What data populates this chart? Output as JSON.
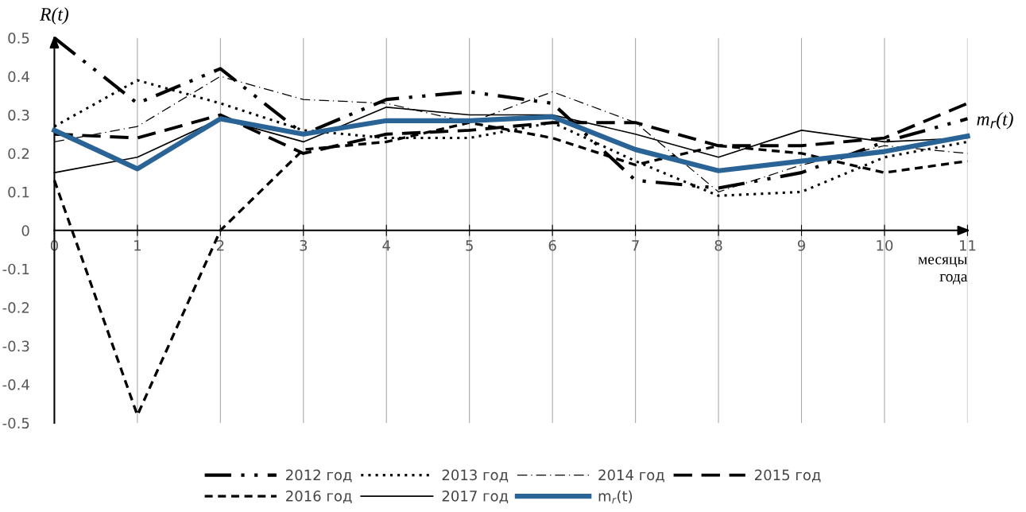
{
  "chart_data": {
    "type": "line",
    "ylabel": "R(t)",
    "xlabel": "месяцы\nгода",
    "x": [
      0,
      1,
      2,
      3,
      4,
      5,
      6,
      7,
      8,
      9,
      10,
      11
    ],
    "xlim": [
      0,
      11
    ],
    "xticks": [
      0,
      1,
      2,
      3,
      4,
      5,
      6,
      7,
      8,
      9,
      10,
      11
    ],
    "ylim": [
      -0.5,
      0.5
    ],
    "yticks": [
      -0.5,
      -0.4,
      -0.3,
      -0.2,
      -0.1,
      0,
      0.1,
      0.2,
      0.3,
      0.4,
      0.5
    ],
    "grid": "x",
    "legend": "bottom",
    "marker": "none",
    "series": [
      {
        "name": "2012 год",
        "color": "#000000",
        "line_style": "dashdot",
        "values": [
          0.5,
          0.33,
          0.42,
          0.25,
          0.34,
          0.36,
          0.33,
          0.13,
          0.11,
          0.15,
          0.23,
          0.29
        ]
      },
      {
        "name": "2013 год",
        "color": "#000000",
        "line_style": "dotted",
        "values": [
          0.27,
          0.39,
          0.33,
          0.26,
          0.24,
          0.24,
          0.28,
          0.18,
          0.09,
          0.1,
          0.19,
          0.23
        ]
      },
      {
        "name": "2014 год",
        "color": "#000000",
        "line_style": "dashdot",
        "values": [
          0.23,
          0.27,
          0.4,
          0.34,
          0.33,
          0.28,
          0.36,
          0.28,
          0.1,
          0.17,
          0.22,
          0.2
        ]
      },
      {
        "name": "2015 год",
        "color": "#000000",
        "line_style": "dashed",
        "values": [
          0.25,
          0.24,
          0.3,
          0.2,
          0.25,
          0.26,
          0.28,
          0.28,
          0.22,
          0.22,
          0.24,
          0.33
        ]
      },
      {
        "name": "2016 год",
        "color": "#000000",
        "line_style": "dashed",
        "values": [
          0.13,
          -0.48,
          0.0,
          0.21,
          0.23,
          0.28,
          0.24,
          0.17,
          0.22,
          0.2,
          0.15,
          0.18
        ]
      },
      {
        "name": "2017 год",
        "color": "#000000",
        "line_style": "solid",
        "values": [
          0.15,
          0.19,
          0.29,
          0.23,
          0.32,
          0.3,
          0.3,
          0.25,
          0.19,
          0.26,
          0.23,
          0.24
        ]
      },
      {
        "name": "m$_{r}$(t)",
        "color": "#2a6395",
        "line_style": "solid",
        "values": [
          0.26,
          0.16,
          0.29,
          0.25,
          0.285,
          0.285,
          0.295,
          0.21,
          0.155,
          0.18,
          0.205,
          0.245
        ]
      }
    ],
    "annotations": [
      {
        "text": "m$_{r}$(t)",
        "x": 11,
        "y": 0.245
      }
    ]
  }
}
